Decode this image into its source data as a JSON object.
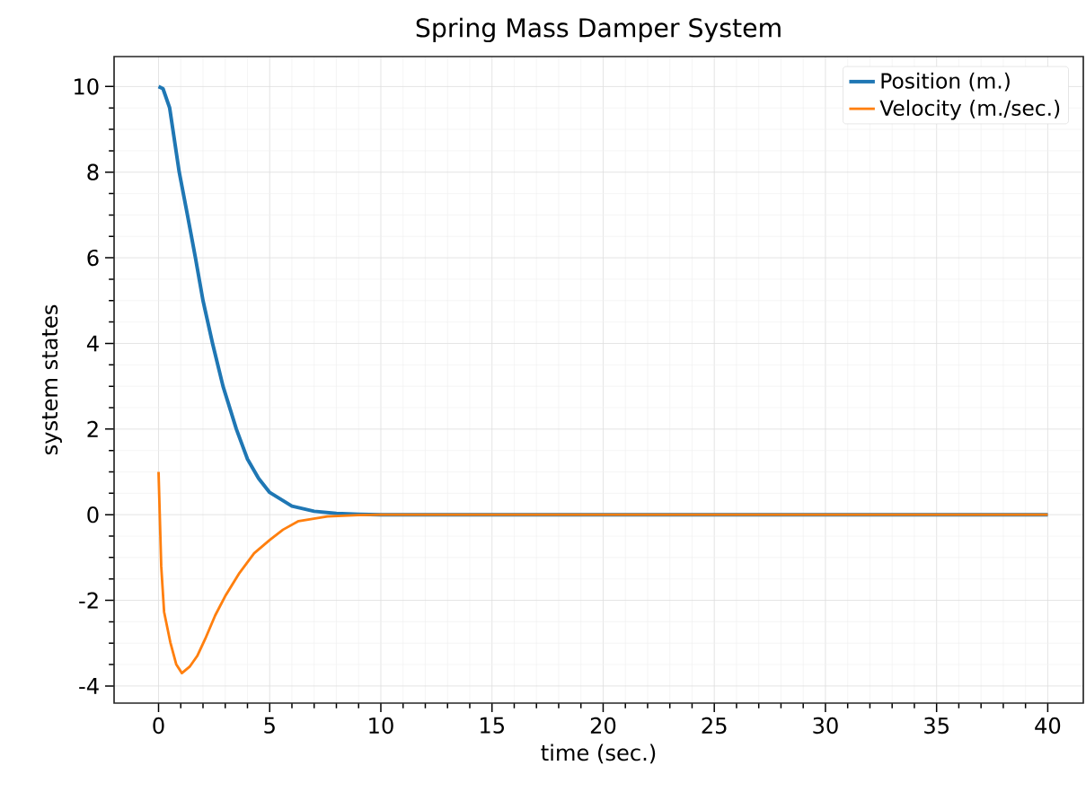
{
  "chart_data": {
    "type": "line",
    "title": "Spring Mass Damper System",
    "xlabel": "time (sec.)",
    "ylabel": "system states",
    "xlim": [
      -2,
      41.6
    ],
    "ylim": [
      -4.4,
      10.7
    ],
    "xticks": [
      0,
      5,
      10,
      15,
      20,
      25,
      30,
      35,
      40
    ],
    "yticks": [
      -4,
      -2,
      0,
      2,
      4,
      6,
      8,
      10
    ],
    "grid": true,
    "legend": "top right",
    "series": [
      {
        "name": "Position (m.)",
        "color": "#1f77b4",
        "x": [
          0,
          0.2,
          0.5,
          0.93,
          1.3,
          1.66,
          2.0,
          2.43,
          2.9,
          3.5,
          4.0,
          4.5,
          5.0,
          6.0,
          7.0,
          8.0,
          9.0,
          10.0,
          40.0
        ],
        "values": [
          10,
          9.95,
          9.5,
          8,
          7,
          6,
          5,
          4,
          3,
          2,
          1.3,
          0.85,
          0.52,
          0.2,
          0.08,
          0.03,
          0.01,
          0,
          0
        ]
      },
      {
        "name": "Velocity (m./sec.)",
        "color": "#ff7f0e",
        "x": [
          0,
          0.12,
          0.25,
          0.53,
          0.8,
          1.05,
          1.4,
          1.74,
          2.1,
          2.55,
          3.0,
          3.64,
          4.3,
          5.0,
          5.6,
          6.3,
          7.6,
          9.0,
          10.0,
          40.0
        ],
        "values": [
          1.0,
          -1.2,
          -2.27,
          -2.98,
          -3.5,
          -3.7,
          -3.55,
          -3.3,
          -2.9,
          -2.35,
          -1.9,
          -1.36,
          -0.9,
          -0.59,
          -0.35,
          -0.15,
          -0.04,
          -0.01,
          0,
          0
        ]
      }
    ]
  }
}
